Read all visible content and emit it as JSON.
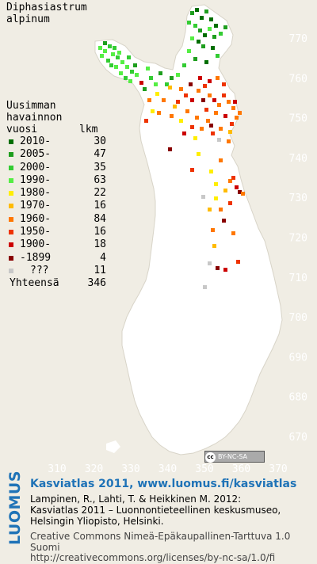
{
  "species": {
    "genus": "Diphasiastrum",
    "epithet": "alpinum"
  },
  "legend": {
    "title_lines": [
      "Uusimman",
      "havainnon"
    ],
    "col_year": "vuosi",
    "col_count": "lkm",
    "rows": [
      {
        "label": "2010-",
        "count": "30",
        "color": "#006e00"
      },
      {
        "label": "2005-",
        "count": "47",
        "color": "#1e9e1e"
      },
      {
        "label": "2000-",
        "count": "35",
        "color": "#33cc33"
      },
      {
        "label": "1990-",
        "count": "63",
        "color": "#55ee44"
      },
      {
        "label": "1980-",
        "count": "22",
        "color": "#ffee00"
      },
      {
        "label": "1970-",
        "count": "16",
        "color": "#ffbb00"
      },
      {
        "label": "1960-",
        "count": "84",
        "color": "#ff7700"
      },
      {
        "label": "1950-",
        "count": "16",
        "color": "#ee3300"
      },
      {
        "label": "1900-",
        "count": "18",
        "color": "#cc0000"
      },
      {
        "label": "-1899",
        "count": "4",
        "color": "#880000"
      },
      {
        "label": "???",
        "count": "11",
        "color": "#c8c8c8"
      }
    ],
    "total_label": "Yhteensä",
    "total_count": "346"
  },
  "axes": {
    "y_ticks": [
      "770",
      "760",
      "750",
      "740",
      "730",
      "720",
      "710",
      "700",
      "690",
      "680",
      "670"
    ],
    "x_ticks": [
      "310",
      "320",
      "330",
      "340",
      "350",
      "360",
      "370"
    ]
  },
  "credits": {
    "atlas": "Kasviatlas 2011, www.luomus.fi/kasviatlas",
    "cite_1": "Lampinen, R., Lahti, T. & Heikkinen M. 2012:",
    "cite_2": "Kasviatlas 2011 – Luonnontieteellinen keskusmuseo,",
    "cite_3": "Helsingin Yliopisto, Helsinki.",
    "license_1": "Creative Commons Nimeä-Epäkaupallinen-Tarttuva 1.0 Suomi",
    "license_2": "http://creativecommons.org/licenses/by-nc-sa/1.0/fi",
    "logo": "LUOMUS",
    "cc_badge": "BY-NC-SA",
    "cc_symbol": "cc"
  },
  "colors": {
    "background": "#f0ede4",
    "land": "#ffffff",
    "axis_text": "#ffffff",
    "accent_blue": "#1f73b7"
  }
}
